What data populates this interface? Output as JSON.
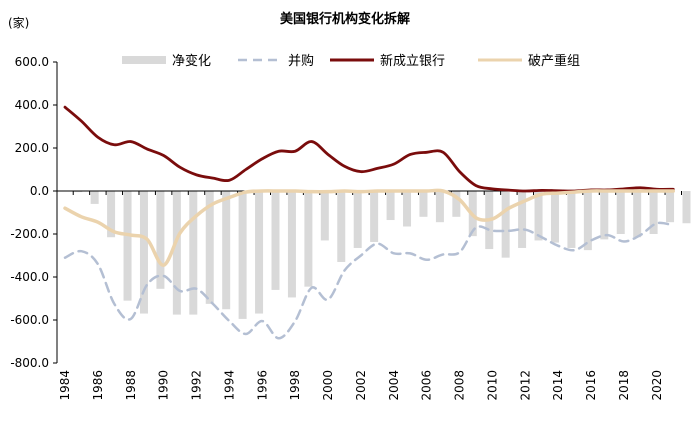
{
  "chart_data": {
    "type": "bar+line",
    "title": "美国银行机构变化拆解",
    "ylabel": "(家)",
    "ylim": [
      -800,
      600
    ],
    "yticks": [
      -800,
      -600,
      -400,
      -200,
      0,
      200,
      400,
      600
    ],
    "ytick_labels": [
      "-800.0",
      "-600.0",
      "-400.0",
      "-200.0",
      "0.0",
      "200.0",
      "400.0",
      "600.0"
    ],
    "x": [
      1984,
      1985,
      1986,
      1987,
      1988,
      1989,
      1990,
      1991,
      1992,
      1993,
      1994,
      1995,
      1996,
      1997,
      1998,
      1999,
      2000,
      2001,
      2002,
      2003,
      2004,
      2005,
      2006,
      2007,
      2008,
      2009,
      2010,
      2011,
      2012,
      2013,
      2014,
      2015,
      2016,
      2017,
      2018,
      2019,
      2020,
      2021
    ],
    "xtick_labels": [
      "1984",
      "1986",
      "1988",
      "1990",
      "1992",
      "1994",
      "1996",
      "1998",
      "2000",
      "2002",
      "2004",
      "2006",
      "2008",
      "2010",
      "2012",
      "2014",
      "2016",
      "2018",
      "2020"
    ],
    "legend_position": "top",
    "grid": false,
    "series": [
      {
        "name": "净变化",
        "kind": "bar",
        "color": "#d9d9d9",
        "values": [
          -5,
          -60,
          -215,
          -510,
          -570,
          -455,
          -575,
          -575,
          -525,
          -550,
          -595,
          -570,
          -460,
          -495,
          -445,
          -230,
          -330,
          -265,
          -237,
          -135,
          -165,
          -120,
          -145,
          -120,
          -210,
          -270,
          -310,
          -265,
          -230,
          -240,
          -265,
          -275,
          -225,
          -200,
          -215,
          -200,
          -145,
          -150
        ]
      },
      {
        "name": "并购",
        "kind": "dashed-line",
        "color": "#b4bfd3",
        "values": [
          -310,
          -280,
          -340,
          -525,
          -595,
          -435,
          -395,
          -465,
          -455,
          -525,
          -605,
          -665,
          -605,
          -685,
          -605,
          -450,
          -505,
          -370,
          -300,
          -245,
          -290,
          -290,
          -320,
          -295,
          -285,
          -170,
          -185,
          -185,
          -180,
          -215,
          -255,
          -275,
          -230,
          -205,
          -235,
          -205,
          -150,
          -160
        ]
      },
      {
        "name": "新成立银行",
        "kind": "line",
        "color": "#7a0c0c",
        "values": [
          390,
          325,
          250,
          215,
          230,
          195,
          165,
          110,
          75,
          60,
          50,
          100,
          150,
          185,
          185,
          230,
          170,
          115,
          90,
          105,
          125,
          170,
          180,
          180,
          90,
          25,
          10,
          4,
          0,
          3,
          1,
          0,
          5,
          5,
          10,
          15,
          8,
          8
        ]
      },
      {
        "name": "破产重组",
        "kind": "line",
        "color": "#ebd3ad",
        "values": [
          -80,
          -120,
          -145,
          -190,
          -205,
          -225,
          -345,
          -195,
          -115,
          -60,
          -30,
          -5,
          0,
          0,
          0,
          -3,
          -3,
          0,
          -3,
          0,
          0,
          0,
          0,
          0,
          -40,
          -125,
          -130,
          -80,
          -45,
          -15,
          -10,
          -5,
          0,
          0,
          0,
          0,
          0,
          0
        ]
      }
    ]
  }
}
